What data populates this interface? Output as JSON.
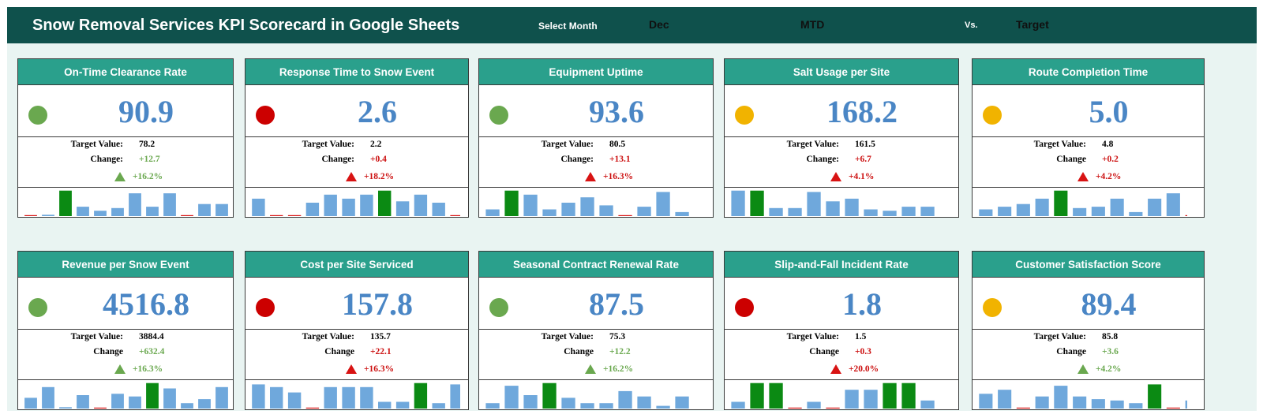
{
  "header": {
    "title": "Snow Removal Services KPI Scorecard in Google Sheets",
    "select_month_label": "Select Month",
    "month": "Dec",
    "period": "MTD",
    "vs_label": "Vs.",
    "comparison": "Target"
  },
  "colors": {
    "header_bg": "#0f514c",
    "card_title_bg": "#2aa08c",
    "value_blue": "#4a86c5",
    "status_green": "#6aa84f",
    "status_red": "#cc0000",
    "status_amber": "#f1b300",
    "bar_blue": "#6fa8dc",
    "bar_highlight": "#0b8a13",
    "bar_low": "#d81313"
  },
  "cards": [
    {
      "title": "On-Time Clearance Rate",
      "status": "green",
      "value": "90.9",
      "target_label": "Target Value:",
      "target": "78.2",
      "change_label": "Change:",
      "change": "+12.7",
      "direction": "up",
      "trend": "positive",
      "pct": "+16.2%",
      "bars": [
        0,
        0.05,
        0.95,
        0.35,
        0.2,
        0.3,
        0.85,
        0.35,
        0.85,
        0,
        0.45,
        0.45
      ],
      "highlight": 2
    },
    {
      "title": "Response Time to Snow Event",
      "status": "red",
      "value": "2.6",
      "target_label": "Target Value:",
      "target": "2.2",
      "change_label": "Change:",
      "change": "+0.4",
      "direction": "up",
      "trend": "negative",
      "pct": "+18.2%",
      "bars": [
        0.65,
        0,
        0,
        0.5,
        0.8,
        0.65,
        0.8,
        0.95,
        0.55,
        0.8,
        0.5,
        0
      ],
      "highlight": 7
    },
    {
      "title": "Equipment Uptime",
      "status": "green",
      "value": "93.6",
      "target_label": "Target Value:",
      "target": "80.5",
      "change_label": "Change:",
      "change": "+13.1",
      "direction": "up",
      "trend": "negative",
      "pct": "+16.3%",
      "bars": [
        0.25,
        0.95,
        0.8,
        0.25,
        0.5,
        0.7,
        0.4,
        0,
        0.35,
        0.9,
        0.15,
        0.4
      ],
      "highlight": 1
    },
    {
      "title": "Salt Usage per Site",
      "status": "amber",
      "value": "168.2",
      "target_label": "Target Value:",
      "target": "161.5",
      "change_label": "Change:",
      "change": "+6.7",
      "direction": "up",
      "trend": "negative",
      "pct": "+4.1%",
      "bars": [
        0.95,
        0.95,
        0.3,
        0.3,
        0.9,
        0.55,
        0.65,
        0.25,
        0.2,
        0.35,
        0.35,
        0
      ],
      "highlight": 1
    },
    {
      "title": "Route Completion Time",
      "status": "amber",
      "value": "5.0",
      "target_label": "Target Value:",
      "target": "4.8",
      "change_label": "Change",
      "change": "+0.2",
      "direction": "up",
      "trend": "negative",
      "pct": "+4.2%",
      "bars": [
        0.25,
        0.35,
        0.45,
        0.65,
        0.95,
        0.3,
        0.35,
        0.65,
        0.15,
        0.65,
        0.85,
        0
      ],
      "highlight": 4
    },
    {
      "title": "Revenue per Snow Event",
      "status": "green",
      "value": "4516.8",
      "target_label": "Target Value:",
      "target": "3884.4",
      "change_label": "Change",
      "change": "+632.4",
      "direction": "up",
      "trend": "positive",
      "pct": "+16.3%",
      "bars": [
        0.4,
        0.8,
        0.05,
        0.5,
        0,
        0.55,
        0.45,
        0.95,
        0.75,
        0.2,
        0.35,
        0.8
      ],
      "highlight": 7
    },
    {
      "title": "Cost per Site Serviced",
      "status": "red",
      "value": "157.8",
      "target_label": "Target Value:",
      "target": "135.7",
      "change_label": "Change",
      "change": "+22.1",
      "direction": "up",
      "trend": "negative",
      "pct": "+16.3%",
      "bars": [
        0.9,
        0.8,
        0.6,
        0,
        0.8,
        0.8,
        0.8,
        0.25,
        0.25,
        0.95,
        0.2,
        0.9
      ],
      "highlight": 9
    },
    {
      "title": "Seasonal Contract Renewal Rate",
      "status": "green",
      "value": "87.5",
      "target_label": "Target Value:",
      "target": "75.3",
      "change_label": "Change",
      "change": "+12.2",
      "direction": "up",
      "trend": "positive",
      "pct": "+16.2%",
      "bars": [
        0.2,
        0.85,
        0.5,
        0.95,
        0.4,
        0.2,
        0.2,
        0.65,
        0.45,
        0.1,
        0.45,
        0
      ],
      "highlight": 3
    },
    {
      "title": "Slip-and-Fall Incident Rate",
      "status": "red",
      "value": "1.8",
      "target_label": "Target Value:",
      "target": "1.5",
      "change_label": "Change",
      "change": "+0.3",
      "direction": "up",
      "trend": "negative",
      "pct": "+20.0%",
      "bars": [
        0.25,
        0.95,
        0.95,
        0,
        0.25,
        0,
        0.7,
        0.7,
        0.95,
        0.95,
        0.3,
        0.45
      ],
      "highlight": [
        1,
        2,
        8,
        9
      ]
    },
    {
      "title": "Customer Satisfaction Score",
      "status": "amber",
      "value": "89.4",
      "target_label": "Target Value:",
      "target": "85.8",
      "change_label": "Change",
      "change": "+3.6",
      "direction": "up",
      "trend": "positive",
      "pct": "+4.2%",
      "bars": [
        0.55,
        0.7,
        0,
        0.45,
        0.85,
        0.45,
        0.35,
        0.3,
        0.2,
        0.9,
        0,
        0.3
      ],
      "highlight": 9
    }
  ]
}
